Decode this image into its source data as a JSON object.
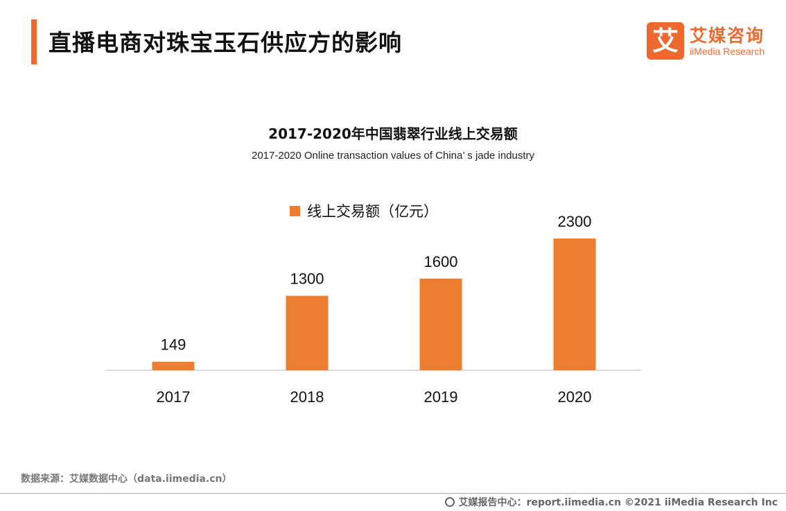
{
  "header": {
    "title": "直播电商对珠宝玉石供应方的影响",
    "logo_mark": "艾",
    "logo_cn": "艾媒咨询",
    "logo_en": "iiMedia Research"
  },
  "colors": {
    "accent": "#ec6a2f",
    "bar": "#ec7d31"
  },
  "chart_data": {
    "type": "bar",
    "title": "2017-2020年中国翡翠行业线上交易额",
    "subtitle": "2017-2020 Online transaction values of China’ s jade industry",
    "categories": [
      "2017",
      "2018",
      "2019",
      "2020"
    ],
    "series": [
      {
        "name": "线上交易额（亿元）",
        "values": [
          149,
          1300,
          1600,
          2300
        ]
      }
    ],
    "data_labels": [
      "149",
      "1300",
      "1600",
      "2300"
    ],
    "legend_position": "top-center",
    "ylim": [
      0,
      2600
    ],
    "grid": false
  },
  "footer": {
    "source": "数据来源：艾媒数据中心（data.iimedia.cn）",
    "right": "艾媒报告中心：report.iimedia.cn   ©2021  iiMedia Research  Inc"
  }
}
